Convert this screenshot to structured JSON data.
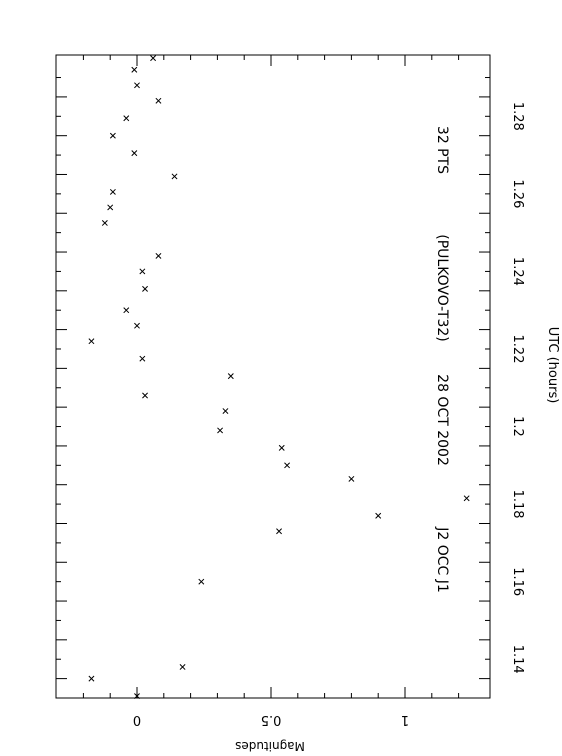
{
  "chart_data": {
    "type": "scatter",
    "orientation": "rotated-90-clockwise",
    "header": [
      "J2 OCC J1",
      "28 OCT 2002",
      "(PULKOVO-T32)",
      "32 PTS"
    ],
    "xlabel": "UTC (hours)",
    "ylabel": "Magnitudes",
    "xlim": [
      1.13,
      1.295
    ],
    "ylim": [
      -0.3,
      1.3
    ],
    "y_inverted": true,
    "x_ticks": [
      "1.14",
      "1.16",
      "1.18",
      "1.2",
      "1.22",
      "1.24",
      "1.26",
      "1.28"
    ],
    "y_ticks": [
      "0",
      "0.5",
      "1"
    ],
    "marker": "x",
    "grid": false,
    "points": [
      {
        "x": 1.1305,
        "y": 0.0
      },
      {
        "x": 1.135,
        "y": -0.17
      },
      {
        "x": 1.138,
        "y": 0.17
      },
      {
        "x": 1.16,
        "y": 0.24
      },
      {
        "x": 1.173,
        "y": 0.53
      },
      {
        "x": 1.177,
        "y": 0.9
      },
      {
        "x": 1.1815,
        "y": 1.23
      },
      {
        "x": 1.1865,
        "y": 0.8
      },
      {
        "x": 1.19,
        "y": 0.56
      },
      {
        "x": 1.1945,
        "y": 0.54
      },
      {
        "x": 1.199,
        "y": 0.31
      },
      {
        "x": 1.204,
        "y": 0.33
      },
      {
        "x": 1.208,
        "y": 0.03
      },
      {
        "x": 1.213,
        "y": 0.35
      },
      {
        "x": 1.2175,
        "y": 0.02
      },
      {
        "x": 1.222,
        "y": -0.17
      },
      {
        "x": 1.226,
        "y": 0.0
      },
      {
        "x": 1.23,
        "y": -0.04
      },
      {
        "x": 1.2355,
        "y": 0.03
      },
      {
        "x": 1.24,
        "y": 0.02
      },
      {
        "x": 1.244,
        "y": 0.08
      },
      {
        "x": 1.2525,
        "y": -0.12
      },
      {
        "x": 1.2565,
        "y": -0.1
      },
      {
        "x": 1.2605,
        "y": -0.09
      },
      {
        "x": 1.2645,
        "y": 0.14
      },
      {
        "x": 1.2705,
        "y": -0.01
      },
      {
        "x": 1.275,
        "y": -0.09
      },
      {
        "x": 1.2795,
        "y": -0.04
      },
      {
        "x": 1.284,
        "y": 0.08
      },
      {
        "x": 1.288,
        "y": 0.0
      },
      {
        "x": 1.292,
        "y": -0.01
      },
      {
        "x": 1.295,
        "y": 0.06
      }
    ]
  }
}
